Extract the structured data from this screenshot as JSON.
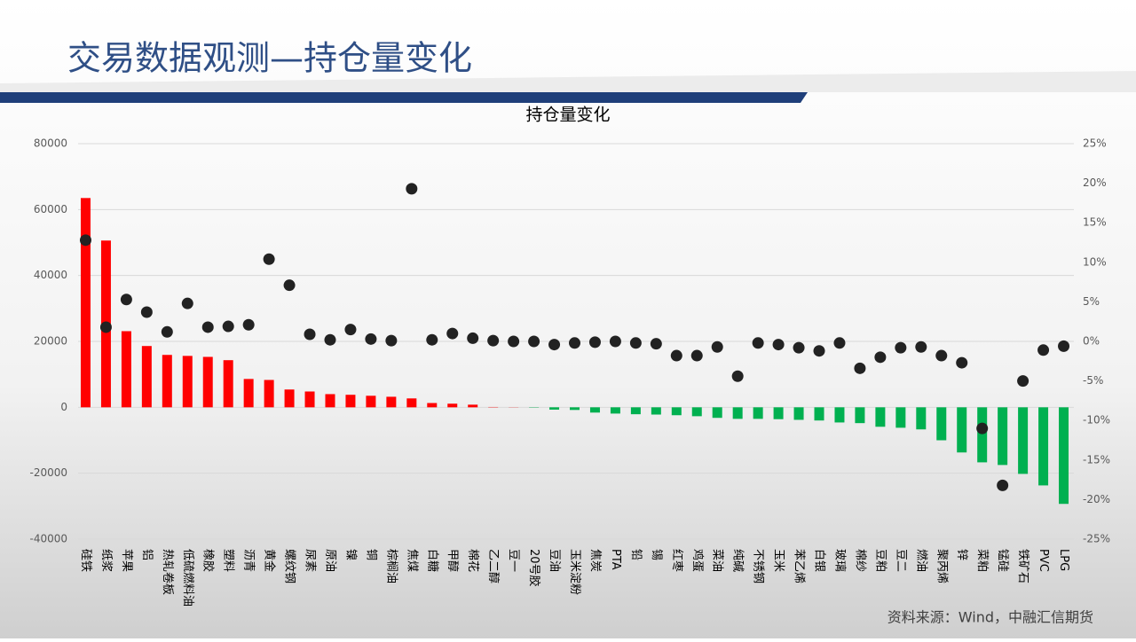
{
  "slide": {
    "title": "交易数据观测—持仓量变化",
    "source": "资料来源：Wind，中融汇信期货"
  },
  "chart_data": {
    "type": "bar",
    "title": "持仓量变化",
    "categories": [
      "硅铁",
      "纸浆",
      "苹果",
      "铝",
      "热轧卷板",
      "低硫燃料油",
      "橡胶",
      "塑料",
      "沥青",
      "黄金",
      "螺纹钢",
      "尿素",
      "原油",
      "镍",
      "铜",
      "棕榈油",
      "焦煤",
      "白糖",
      "甲醇",
      "棉花",
      "乙二醇",
      "豆一",
      "20号胶",
      "豆油",
      "玉米淀粉",
      "焦炭",
      "PTA",
      "铅",
      "锡",
      "红枣",
      "鸡蛋",
      "菜油",
      "纯碱",
      "不锈钢",
      "玉米",
      "苯乙烯",
      "白银",
      "玻璃",
      "棉纱",
      "豆粕",
      "豆二",
      "燃油",
      "聚丙烯",
      "锌",
      "菜粕",
      "锰硅",
      "铁矿石",
      "PVC",
      "LPG"
    ],
    "series": [
      {
        "type": "bar",
        "positive_color": "#ff0000",
        "negative_color": "#00b050",
        "values": [
          63500,
          50600,
          23100,
          18600,
          15900,
          15600,
          15300,
          14300,
          8600,
          8300,
          5400,
          4800,
          4000,
          3800,
          3500,
          3200,
          2700,
          1300,
          1100,
          800,
          100,
          50,
          -100,
          -700,
          -800,
          -1600,
          -1900,
          -2100,
          -2200,
          -2400,
          -2700,
          -3200,
          -3500,
          -3500,
          -3600,
          -3800,
          -4000,
          -4600,
          -4800,
          -5900,
          -6200,
          -6700,
          -10000,
          -13700,
          -16700,
          -17500,
          -20200,
          -23700,
          -29300
        ]
      },
      {
        "type": "scatter",
        "axis": "y2",
        "color": "#222222",
        "values": [
          12.8,
          1.8,
          5.3,
          3.7,
          1.2,
          4.8,
          1.8,
          1.9,
          2.1,
          10.4,
          7.1,
          0.9,
          0.2,
          1.5,
          0.3,
          0.1,
          19.3,
          0.2,
          1.0,
          0.4,
          0.1,
          0,
          0,
          -0.4,
          -0.2,
          -0.1,
          0,
          -0.2,
          -0.3,
          -1.8,
          -1.8,
          -0.7,
          -4.4,
          -0.2,
          -0.4,
          -0.8,
          -1.2,
          -0.2,
          -3.4,
          -2.0,
          -0.8,
          -0.7,
          -1.8,
          -2.7,
          -11.0,
          -18.2,
          -5.0,
          -1.1,
          -0.6
        ]
      }
    ],
    "ylim": [
      -40000,
      80000
    ],
    "yticks": [
      -40000,
      -20000,
      0,
      20000,
      40000,
      60000,
      80000
    ],
    "y2lim": [
      -25,
      25
    ],
    "y2ticks": [
      {
        "value": -25,
        "label": "-25%"
      },
      {
        "value": -20,
        "label": "-20%"
      },
      {
        "value": -15,
        "label": "-15%"
      },
      {
        "value": -10,
        "label": "-10%"
      },
      {
        "value": -5,
        "label": "-5%"
      },
      {
        "value": 0,
        "label": "0%"
      },
      {
        "value": 5,
        "label": "5%"
      },
      {
        "value": 10,
        "label": "10%"
      },
      {
        "value": 15,
        "label": "15%"
      },
      {
        "value": 20,
        "label": "20%"
      },
      {
        "value": 25,
        "label": "25%"
      }
    ],
    "grid": true
  }
}
